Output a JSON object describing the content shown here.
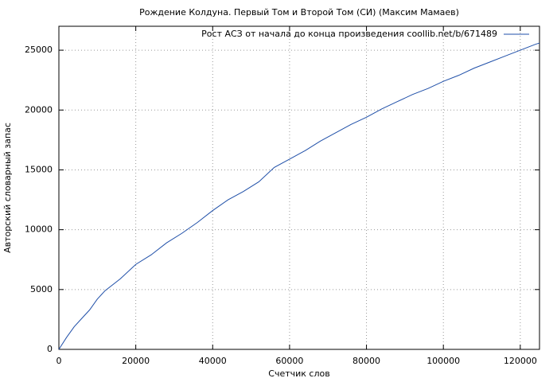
{
  "chart_data": {
    "type": "line",
    "title": "Рождение Колдуна. Первый Том и Второй Том (СИ) (Максим Мамаев)",
    "xlabel": "Счетчик слов",
    "ylabel": "Авторский словарный запас",
    "x": [
      0,
      2000,
      4000,
      6000,
      8000,
      10000,
      12000,
      16000,
      20000,
      24000,
      28000,
      32000,
      36000,
      40000,
      44000,
      48000,
      52000,
      56000,
      60000,
      64000,
      68000,
      72000,
      76000,
      80000,
      84000,
      88000,
      92000,
      96000,
      100000,
      104000,
      108000,
      112000,
      116000,
      120000,
      124000,
      125000
    ],
    "series": [
      {
        "name": "Рост АСЗ от начала до конца произведения coollib.net/b/671489",
        "color": "#1f4fa8",
        "values": [
          0,
          1000,
          1900,
          2600,
          3300,
          4200,
          4900,
          5900,
          7100,
          7900,
          8900,
          9700,
          10600,
          11600,
          12500,
          13200,
          14000,
          15200,
          15900,
          16600,
          17400,
          18100,
          18800,
          19400,
          20100,
          20700,
          21300,
          21800,
          22400,
          22900,
          23500,
          24000,
          24500,
          25000,
          25500,
          25600
        ]
      }
    ],
    "xlim": [
      0,
      125000
    ],
    "xticks": [
      0,
      20000,
      40000,
      60000,
      80000,
      100000,
      120000
    ],
    "ylim": [
      0,
      27000
    ],
    "yticks": [
      0,
      5000,
      10000,
      15000,
      20000,
      25000
    ],
    "grid": true,
    "legend": "top-right"
  }
}
